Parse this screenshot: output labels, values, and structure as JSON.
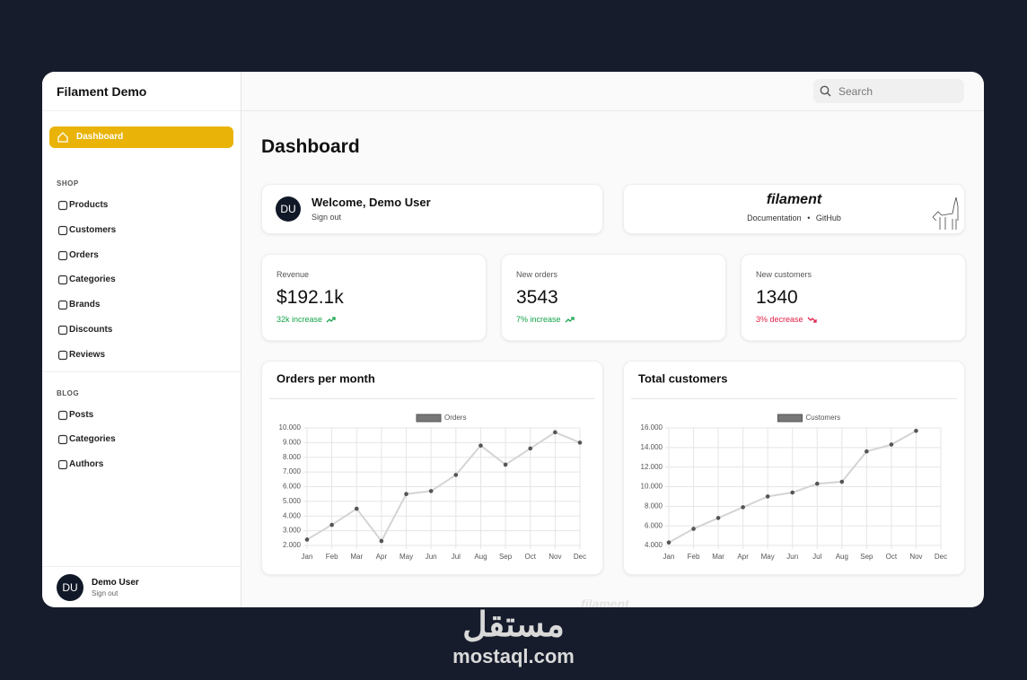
{
  "app": {
    "name": "Filament Demo"
  },
  "search": {
    "placeholder": "Search"
  },
  "nav": {
    "active": "Dashboard",
    "groups": [
      {
        "label": "SHOP",
        "items": [
          "Products",
          "Customers",
          "Orders",
          "Categories",
          "Brands",
          "Discounts",
          "Reviews"
        ]
      },
      {
        "label": "BLOG",
        "items": [
          "Posts",
          "Categories",
          "Authors"
        ]
      }
    ]
  },
  "user": {
    "initials": "DU",
    "name": "Demo User",
    "action": "Sign out"
  },
  "page": {
    "title": "Dashboard"
  },
  "welcome": {
    "initials": "DU",
    "title": "Welcome, Demo User",
    "action": "Sign out"
  },
  "brand_card": {
    "logo": "filament",
    "links": [
      "Documentation",
      "GitHub"
    ],
    "separator": "•"
  },
  "stats": [
    {
      "label": "Revenue",
      "value": "$192.1k",
      "change": "32k increase",
      "trend": "up"
    },
    {
      "label": "New orders",
      "value": "3543",
      "change": "7% increase",
      "trend": "up"
    },
    {
      "label": "New customers",
      "value": "1340",
      "change": "3% decrease",
      "trend": "down"
    }
  ],
  "footer": {
    "logo": "filament"
  },
  "watermark": {
    "logo": "مستقل",
    "text": "mostaql.com"
  },
  "chart_data": [
    {
      "type": "line",
      "title": "Orders per month",
      "categories": [
        "Jan",
        "Feb",
        "Mar",
        "Apr",
        "May",
        "Jun",
        "Jul",
        "Aug",
        "Sep",
        "Oct",
        "Nov",
        "Dec"
      ],
      "series": [
        {
          "name": "Orders",
          "color": "#d4d4d4",
          "values": [
            2400,
            3400,
            4500,
            2300,
            5500,
            5700,
            6800,
            8800,
            7500,
            8600,
            9700,
            9000
          ]
        }
      ],
      "ylim": [
        2000,
        10000
      ],
      "yticks": [
        {
          "value": 2000,
          "label": "2.000"
        },
        {
          "value": 3000,
          "label": "3.000"
        },
        {
          "value": 4000,
          "label": "4.000"
        },
        {
          "value": 5000,
          "label": "5.000"
        },
        {
          "value": 6000,
          "label": "6.000"
        },
        {
          "value": 7000,
          "label": "7.000"
        },
        {
          "value": 8000,
          "label": "8.000"
        },
        {
          "value": 9000,
          "label": "9.000"
        },
        {
          "value": 10000,
          "label": "10.000"
        }
      ],
      "grid": true
    },
    {
      "type": "line",
      "title": "Total customers",
      "categories": [
        "Jan",
        "Feb",
        "Mar",
        "Apr",
        "May",
        "Jun",
        "Jul",
        "Aug",
        "Sep",
        "Oct",
        "Nov",
        "Dec"
      ],
      "series": [
        {
          "name": "Customers",
          "color": "#d4d4d4",
          "values": [
            4300,
            5700,
            6800,
            7900,
            9000,
            9400,
            10300,
            10500,
            13600,
            14300,
            15700,
            null
          ]
        }
      ],
      "ylim": [
        4000,
        16000
      ],
      "yticks": [
        {
          "value": 4000,
          "label": "4.000"
        },
        {
          "value": 6000,
          "label": "6.000"
        },
        {
          "value": 8000,
          "label": "8.000"
        },
        {
          "value": 10000,
          "label": "10.000"
        },
        {
          "value": 12000,
          "label": "12.000"
        },
        {
          "value": 14000,
          "label": "14.000"
        },
        {
          "value": 16000,
          "label": "16.000"
        }
      ],
      "grid": true
    }
  ]
}
